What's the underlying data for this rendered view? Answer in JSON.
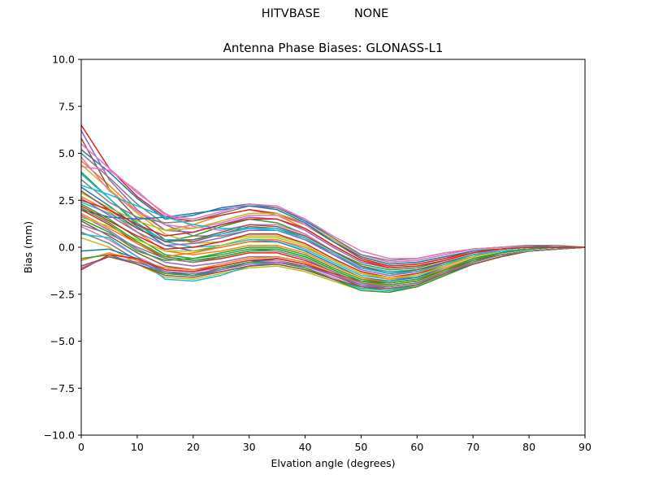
{
  "suptitle": {
    "left": "HITVBASE",
    "right": "NONE"
  },
  "chart_data": {
    "type": "line",
    "title": "Antenna Phase Biases: GLONASS-L1",
    "xlabel": "Elvation angle (degrees)",
    "ylabel": "Bias (mm)",
    "xlim": [
      0,
      90
    ],
    "ylim": [
      -10,
      10
    ],
    "x_ticks": [
      "0",
      "10",
      "20",
      "30",
      "40",
      "50",
      "60",
      "70",
      "80",
      "90"
    ],
    "y_ticks": [
      "10.0",
      "7.5",
      "5.0",
      "2.5",
      "0.0",
      "−2.5",
      "−5.0",
      "−7.5",
      "−10.0"
    ],
    "grid": false,
    "legend": "none",
    "x": [
      0,
      5,
      10,
      15,
      20,
      25,
      30,
      35,
      40,
      45,
      50,
      55,
      60,
      65,
      70,
      75,
      80,
      85,
      90
    ],
    "series": [
      {
        "color": "#1f77b4",
        "values": [
          5.2,
          4.0,
          2.6,
          1.5,
          1.7,
          2.1,
          2.3,
          2.1,
          1.4,
          0.5,
          -0.4,
          -0.8,
          -0.7,
          -0.4,
          -0.1,
          0.0,
          0.1,
          0.0,
          0.0
        ]
      },
      {
        "color": "#ff7f0e",
        "values": [
          4.6,
          3.3,
          1.9,
          0.9,
          1.2,
          1.7,
          2.0,
          1.7,
          1.0,
          0.1,
          -0.7,
          -1.0,
          -0.9,
          -0.6,
          -0.3,
          -0.1,
          0.0,
          0.0,
          0.0
        ]
      },
      {
        "color": "#2ca02c",
        "values": [
          4.0,
          2.6,
          1.2,
          0.3,
          0.6,
          1.1,
          1.5,
          1.3,
          0.7,
          -0.2,
          -0.9,
          -1.2,
          -1.1,
          -0.7,
          -0.3,
          -0.1,
          0.0,
          0.0,
          0.0
        ]
      },
      {
        "color": "#d62728",
        "values": [
          6.5,
          4.2,
          2.7,
          1.6,
          1.4,
          1.7,
          2.0,
          1.8,
          1.2,
          0.3,
          -0.6,
          -1.0,
          -0.9,
          -0.6,
          -0.2,
          -0.1,
          0.0,
          0.0,
          0.0
        ]
      },
      {
        "color": "#9467bd",
        "values": [
          6.2,
          3.6,
          2.0,
          0.9,
          0.8,
          1.2,
          1.6,
          1.5,
          0.9,
          0.0,
          -0.8,
          -1.1,
          -1.0,
          -0.7,
          -0.3,
          -0.1,
          0.0,
          0.0,
          0.0
        ]
      },
      {
        "color": "#8c564b",
        "values": [
          5.8,
          3.1,
          1.5,
          0.4,
          0.3,
          0.7,
          1.1,
          1.0,
          0.5,
          -0.4,
          -1.1,
          -1.4,
          -1.3,
          -0.8,
          -0.4,
          -0.2,
          -0.1,
          0.0,
          0.0
        ]
      },
      {
        "color": "#e377c2",
        "values": [
          5.5,
          4.2,
          2.9,
          1.8,
          1.1,
          0.9,
          1.2,
          1.2,
          0.7,
          -0.2,
          -1.0,
          -1.3,
          -1.2,
          -0.8,
          -0.4,
          -0.1,
          0.0,
          0.0,
          0.0
        ]
      },
      {
        "color": "#7f7f7f",
        "values": [
          5.0,
          3.7,
          2.3,
          1.2,
          0.6,
          0.6,
          0.9,
          0.9,
          0.4,
          -0.4,
          -1.1,
          -1.4,
          -1.3,
          -0.9,
          -0.4,
          -0.2,
          -0.1,
          0.0,
          0.0
        ]
      },
      {
        "color": "#bcbd22",
        "values": [
          4.4,
          3.1,
          1.8,
          0.7,
          0.2,
          0.3,
          0.6,
          0.6,
          0.2,
          -0.6,
          -1.3,
          -1.6,
          -1.4,
          -0.9,
          -0.5,
          -0.2,
          -0.1,
          0.0,
          0.0
        ]
      },
      {
        "color": "#17becf",
        "values": [
          3.9,
          2.6,
          1.3,
          0.3,
          0.0,
          0.1,
          0.4,
          0.4,
          -0.1,
          -0.8,
          -1.5,
          -1.7,
          -1.6,
          -1.0,
          -0.5,
          -0.2,
          -0.1,
          0.0,
          0.0
        ]
      },
      {
        "color": "#1f77b4",
        "values": [
          3.2,
          2.2,
          1.1,
          0.1,
          -0.2,
          0.0,
          0.3,
          0.3,
          -0.2,
          -0.9,
          -1.6,
          -1.8,
          -1.6,
          -1.1,
          -0.6,
          -0.3,
          -0.1,
          0.0,
          0.0
        ]
      },
      {
        "color": "#ff7f0e",
        "values": [
          2.7,
          1.9,
          0.8,
          -0.2,
          -0.4,
          -0.2,
          0.1,
          0.1,
          -0.3,
          -1.0,
          -1.6,
          -1.9,
          -1.7,
          -1.1,
          -0.6,
          -0.3,
          -0.1,
          0.0,
          0.0
        ]
      },
      {
        "color": "#2ca02c",
        "values": [
          2.3,
          1.5,
          0.5,
          -0.4,
          -0.6,
          -0.4,
          -0.1,
          -0.1,
          -0.5,
          -1.2,
          -1.8,
          -2.0,
          -1.8,
          -1.2,
          -0.7,
          -0.3,
          -0.1,
          0.0,
          0.0
        ]
      },
      {
        "color": "#d62728",
        "values": [
          2.0,
          1.2,
          0.2,
          -0.6,
          -0.8,
          -0.6,
          -0.3,
          -0.3,
          -0.7,
          -1.3,
          -1.9,
          -2.1,
          -1.9,
          -1.3,
          -0.7,
          -0.4,
          -0.2,
          -0.1,
          0.0
        ]
      },
      {
        "color": "#9467bd",
        "values": [
          1.7,
          0.9,
          -0.1,
          -0.8,
          -1.0,
          -0.8,
          -0.5,
          -0.5,
          -0.8,
          -1.4,
          -2.0,
          -2.2,
          -2.0,
          -1.4,
          -0.8,
          -0.4,
          -0.2,
          -0.1,
          0.0
        ]
      },
      {
        "color": "#8c564b",
        "values": [
          1.4,
          0.6,
          -0.3,
          -1.0,
          -1.2,
          -1.0,
          -0.7,
          -0.7,
          -1.0,
          -1.5,
          -2.1,
          -2.3,
          -2.0,
          -1.4,
          -0.8,
          -0.4,
          -0.2,
          -0.1,
          0.0
        ]
      },
      {
        "color": "#e377c2",
        "values": [
          1.1,
          0.4,
          -0.5,
          -1.2,
          -1.3,
          -1.1,
          -0.8,
          -0.7,
          -1.1,
          -1.6,
          -2.2,
          -2.3,
          -2.1,
          -1.5,
          -0.9,
          -0.5,
          -0.2,
          -0.1,
          0.0
        ]
      },
      {
        "color": "#7f7f7f",
        "values": [
          0.8,
          0.2,
          -0.7,
          -1.4,
          -1.5,
          -1.3,
          -1.0,
          -0.9,
          -1.2,
          -1.7,
          -2.2,
          -2.3,
          -2.1,
          -1.5,
          -0.9,
          -0.5,
          -0.2,
          -0.1,
          0.0
        ]
      },
      {
        "color": "#bcbd22",
        "values": [
          0.5,
          0.0,
          -0.9,
          -1.6,
          -1.7,
          -1.4,
          -1.1,
          -1.0,
          -1.3,
          -1.8,
          -2.3,
          -2.4,
          -2.1,
          -1.5,
          -0.9,
          -0.5,
          -0.2,
          -0.1,
          0.0
        ]
      },
      {
        "color": "#17becf",
        "values": [
          0.7,
          0.5,
          -0.5,
          -1.7,
          -1.8,
          -1.5,
          -1.0,
          -0.8,
          -1.1,
          -1.7,
          -2.2,
          -2.3,
          -2.0,
          -1.4,
          -0.8,
          -0.4,
          -0.2,
          -0.1,
          0.0
        ]
      },
      {
        "color": "#1f77b4",
        "values": [
          -0.2,
          -0.1,
          -0.6,
          -1.3,
          -1.5,
          -1.2,
          -0.8,
          -0.6,
          -0.9,
          -1.5,
          -2.0,
          -2.1,
          -1.9,
          -1.3,
          -0.8,
          -0.4,
          -0.2,
          -0.1,
          0.0
        ]
      },
      {
        "color": "#ff7f0e",
        "values": [
          -0.7,
          -0.3,
          -0.7,
          -1.1,
          -1.2,
          -0.9,
          -0.6,
          -0.5,
          -0.8,
          -1.4,
          -1.9,
          -2.0,
          -1.8,
          -1.3,
          -0.8,
          -0.4,
          -0.2,
          -0.1,
          0.0
        ]
      },
      {
        "color": "#2ca02c",
        "values": [
          -0.6,
          -0.4,
          -0.9,
          -1.4,
          -1.5,
          -1.1,
          -0.8,
          -0.8,
          -1.1,
          -1.7,
          -2.3,
          -2.4,
          -2.1,
          -1.5,
          -0.9,
          -0.5,
          -0.2,
          -0.1,
          0.0
        ]
      },
      {
        "color": "#d62728",
        "values": [
          -1.2,
          -0.4,
          -0.6,
          -1.2,
          -1.3,
          -1.0,
          -0.7,
          -0.6,
          -0.9,
          -1.4,
          -1.8,
          -1.9,
          -1.7,
          -1.2,
          -0.7,
          -0.4,
          -0.2,
          -0.1,
          0.0
        ]
      },
      {
        "color": "#9467bd",
        "values": [
          -1.1,
          -0.5,
          -0.8,
          -1.3,
          -1.4,
          -1.2,
          -0.9,
          -0.8,
          -1.0,
          -1.5,
          -2.0,
          -2.1,
          -1.9,
          -1.4,
          -0.8,
          -0.4,
          -0.2,
          -0.1,
          0.0
        ]
      },
      {
        "color": "#8c564b",
        "values": [
          -1.0,
          -0.5,
          -0.9,
          -1.5,
          -1.6,
          -1.3,
          -1.0,
          -0.9,
          -1.2,
          -1.7,
          -2.1,
          -2.2,
          -2.0,
          -1.4,
          -0.9,
          -0.5,
          -0.2,
          -0.1,
          0.0
        ]
      },
      {
        "color": "#e377c2",
        "values": [
          4.8,
          3.0,
          1.9,
          1.2,
          1.0,
          1.3,
          1.7,
          1.7,
          1.2,
          0.4,
          -0.4,
          -0.8,
          -0.7,
          -0.4,
          -0.1,
          0.0,
          0.0,
          0.0,
          0.0
        ]
      },
      {
        "color": "#7f7f7f",
        "values": [
          3.6,
          2.4,
          1.6,
          1.3,
          1.4,
          1.8,
          2.2,
          2.1,
          1.5,
          0.5,
          -0.4,
          -0.7,
          -0.6,
          -0.3,
          -0.1,
          0.0,
          0.1,
          0.1,
          0.0
        ]
      },
      {
        "color": "#bcbd22",
        "values": [
          2.9,
          2.1,
          1.4,
          0.9,
          1.0,
          1.4,
          1.8,
          1.8,
          1.3,
          0.4,
          -0.5,
          -0.9,
          -0.8,
          -0.5,
          -0.2,
          0.0,
          0.0,
          0.0,
          0.0
        ]
      },
      {
        "color": "#17becf",
        "values": [
          2.4,
          1.8,
          1.0,
          0.4,
          0.4,
          0.7,
          1.0,
          1.0,
          0.6,
          -0.2,
          -1.0,
          -1.3,
          -1.2,
          -0.8,
          -0.4,
          -0.2,
          -0.1,
          0.0,
          0.0
        ]
      },
      {
        "color": "#1f77b4",
        "values": [
          2.0,
          1.6,
          1.5,
          1.6,
          1.8,
          2.0,
          2.2,
          2.0,
          1.3,
          0.3,
          -0.5,
          -0.9,
          -0.8,
          -0.5,
          -0.2,
          -0.1,
          0.0,
          0.0,
          0.0
        ]
      },
      {
        "color": "#ff7f0e",
        "values": [
          1.8,
          1.0,
          0.2,
          -0.5,
          -0.3,
          0.0,
          0.3,
          0.4,
          0.0,
          -0.7,
          -1.4,
          -1.7,
          -1.5,
          -1.0,
          -0.5,
          -0.2,
          -0.1,
          0.0,
          0.0
        ]
      },
      {
        "color": "#2ca02c",
        "values": [
          1.5,
          0.8,
          -0.2,
          -0.7,
          -0.6,
          -0.3,
          0.0,
          0.0,
          -0.4,
          -1.1,
          -1.7,
          -1.9,
          -1.7,
          -1.2,
          -0.6,
          -0.3,
          -0.1,
          0.0,
          0.0
        ]
      },
      {
        "color": "#d62728",
        "values": [
          2.2,
          1.4,
          0.6,
          -0.1,
          0.0,
          0.3,
          0.7,
          0.7,
          0.2,
          -0.6,
          -1.3,
          -1.6,
          -1.4,
          -1.0,
          -0.5,
          -0.2,
          -0.1,
          0.0,
          0.0
        ]
      },
      {
        "color": "#9467bd",
        "values": [
          2.6,
          1.7,
          0.8,
          0.1,
          0.2,
          0.5,
          0.9,
          0.9,
          0.4,
          -0.4,
          -1.2,
          -1.5,
          -1.3,
          -0.9,
          -0.4,
          -0.2,
          -0.1,
          0.0,
          0.0
        ]
      },
      {
        "color": "#8c564b",
        "values": [
          3.0,
          2.0,
          1.0,
          0.3,
          0.4,
          0.8,
          1.2,
          1.1,
          0.6,
          -0.2,
          -1.0,
          -1.4,
          -1.2,
          -0.8,
          -0.4,
          -0.2,
          -0.1,
          0.0,
          0.0
        ]
      },
      {
        "color": "#e377c2",
        "values": [
          4.3,
          4.1,
          3.0,
          1.7,
          1.5,
          1.9,
          2.3,
          2.2,
          1.5,
          0.6,
          -0.2,
          -0.6,
          -0.6,
          -0.3,
          -0.1,
          0.0,
          0.0,
          0.0,
          0.0
        ]
      },
      {
        "color": "#7f7f7f",
        "values": [
          1.2,
          0.7,
          0.0,
          -0.6,
          -0.8,
          -0.5,
          -0.2,
          -0.2,
          -0.6,
          -1.3,
          -1.9,
          -2.1,
          -1.9,
          -1.3,
          -0.8,
          -0.4,
          -0.2,
          -0.1,
          0.0
        ]
      },
      {
        "color": "#bcbd22",
        "values": [
          1.6,
          1.1,
          0.4,
          -0.2,
          -0.2,
          0.1,
          0.5,
          0.5,
          0.1,
          -0.7,
          -1.4,
          -1.6,
          -1.5,
          -1.0,
          -0.5,
          -0.2,
          -0.1,
          0.0,
          0.0
        ]
      },
      {
        "color": "#17becf",
        "values": [
          3.3,
          2.8,
          2.2,
          1.6,
          1.2,
          1.0,
          1.0,
          0.9,
          0.5,
          -0.3,
          -1.1,
          -1.4,
          -1.3,
          -0.9,
          -0.4,
          -0.2,
          -0.1,
          0.0,
          0.0
        ]
      },
      {
        "color": "#2ca02c",
        "values": [
          2.1,
          1.3,
          0.3,
          -0.5,
          -0.7,
          -0.5,
          -0.2,
          -0.1,
          -0.5,
          -1.2,
          -1.8,
          -2.0,
          -1.8,
          -1.2,
          -0.7,
          -0.3,
          -0.1,
          0.0,
          0.0
        ]
      },
      {
        "color": "#d62728",
        "values": [
          2.5,
          2.0,
          1.2,
          0.6,
          0.8,
          1.2,
          1.5,
          1.5,
          1.0,
          0.1,
          -0.7,
          -1.1,
          -1.0,
          -0.7,
          -0.3,
          -0.1,
          0.0,
          0.0,
          0.0
        ]
      }
    ]
  }
}
